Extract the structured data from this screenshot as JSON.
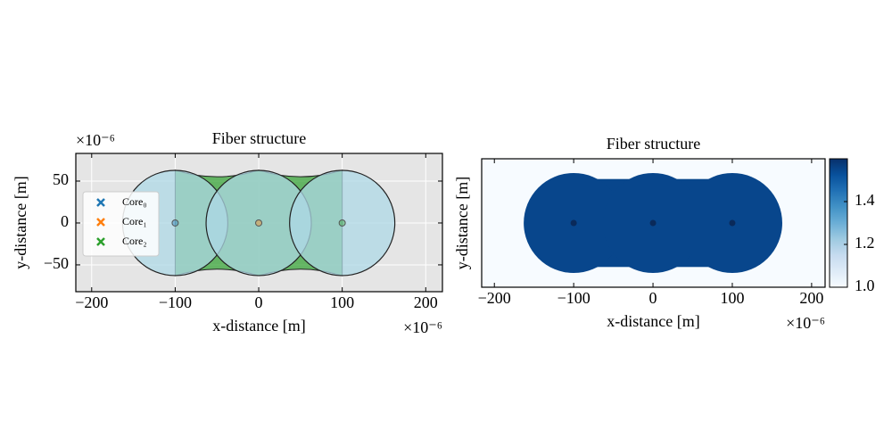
{
  "chart_data": [
    {
      "type": "cores",
      "title": "Fiber structure",
      "xlabel": "x-distance [m]",
      "ylabel": "y-distance [m]",
      "x_offset_label": "×10⁻⁶",
      "y_offset_label": "×10⁻⁶",
      "xlim": [
        -219,
        220
      ],
      "ylim": [
        -82,
        83
      ],
      "xticks": [
        {
          "value": -200,
          "label": "−200"
        },
        {
          "value": -100,
          "label": "−100"
        },
        0,
        100,
        200
      ],
      "yticks": [
        {
          "value": -50,
          "label": "−50"
        },
        0,
        50
      ],
      "grid": true,
      "legend": "left",
      "series": [
        {
          "name": "Core₀",
          "color": "#1f77b4",
          "x": [
            -100
          ],
          "y": [
            0
          ],
          "radius": [
            63
          ]
        },
        {
          "name": "Core₁",
          "color": "#ff7f0e",
          "x": [
            0
          ],
          "y": [
            0
          ],
          "radius": [
            63
          ]
        },
        {
          "name": "Core₂",
          "color": "#2ca02c",
          "x": [
            100
          ],
          "y": [
            0
          ],
          "radius": [
            63
          ]
        }
      ]
    },
    {
      "type": "image",
      "title": "Fiber structure",
      "xlabel": "x-distance [m]",
      "ylabel": "y-distance [m]",
      "x_offset_label": "×10⁻⁶",
      "xlim": [
        -216,
        217
      ],
      "ylim": [
        -81,
        81
      ],
      "xticks": [
        {
          "value": -200,
          "label": "−200"
        },
        {
          "value": -100,
          "label": "−100"
        },
        0,
        100,
        200
      ],
      "colormap": "Blues",
      "clim": [
        1.0,
        1.6
      ],
      "cticks": [
        1.4,
        {
          "value": 1.0,
          "label": "1.0"
        },
        1.2
      ],
      "background_value": 1.0,
      "fiber_value": 1.55,
      "cores": {
        "x": [
          -100,
          0,
          100
        ],
        "y": [
          0,
          0,
          0
        ],
        "radius": [
          63,
          63,
          63
        ]
      }
    }
  ]
}
